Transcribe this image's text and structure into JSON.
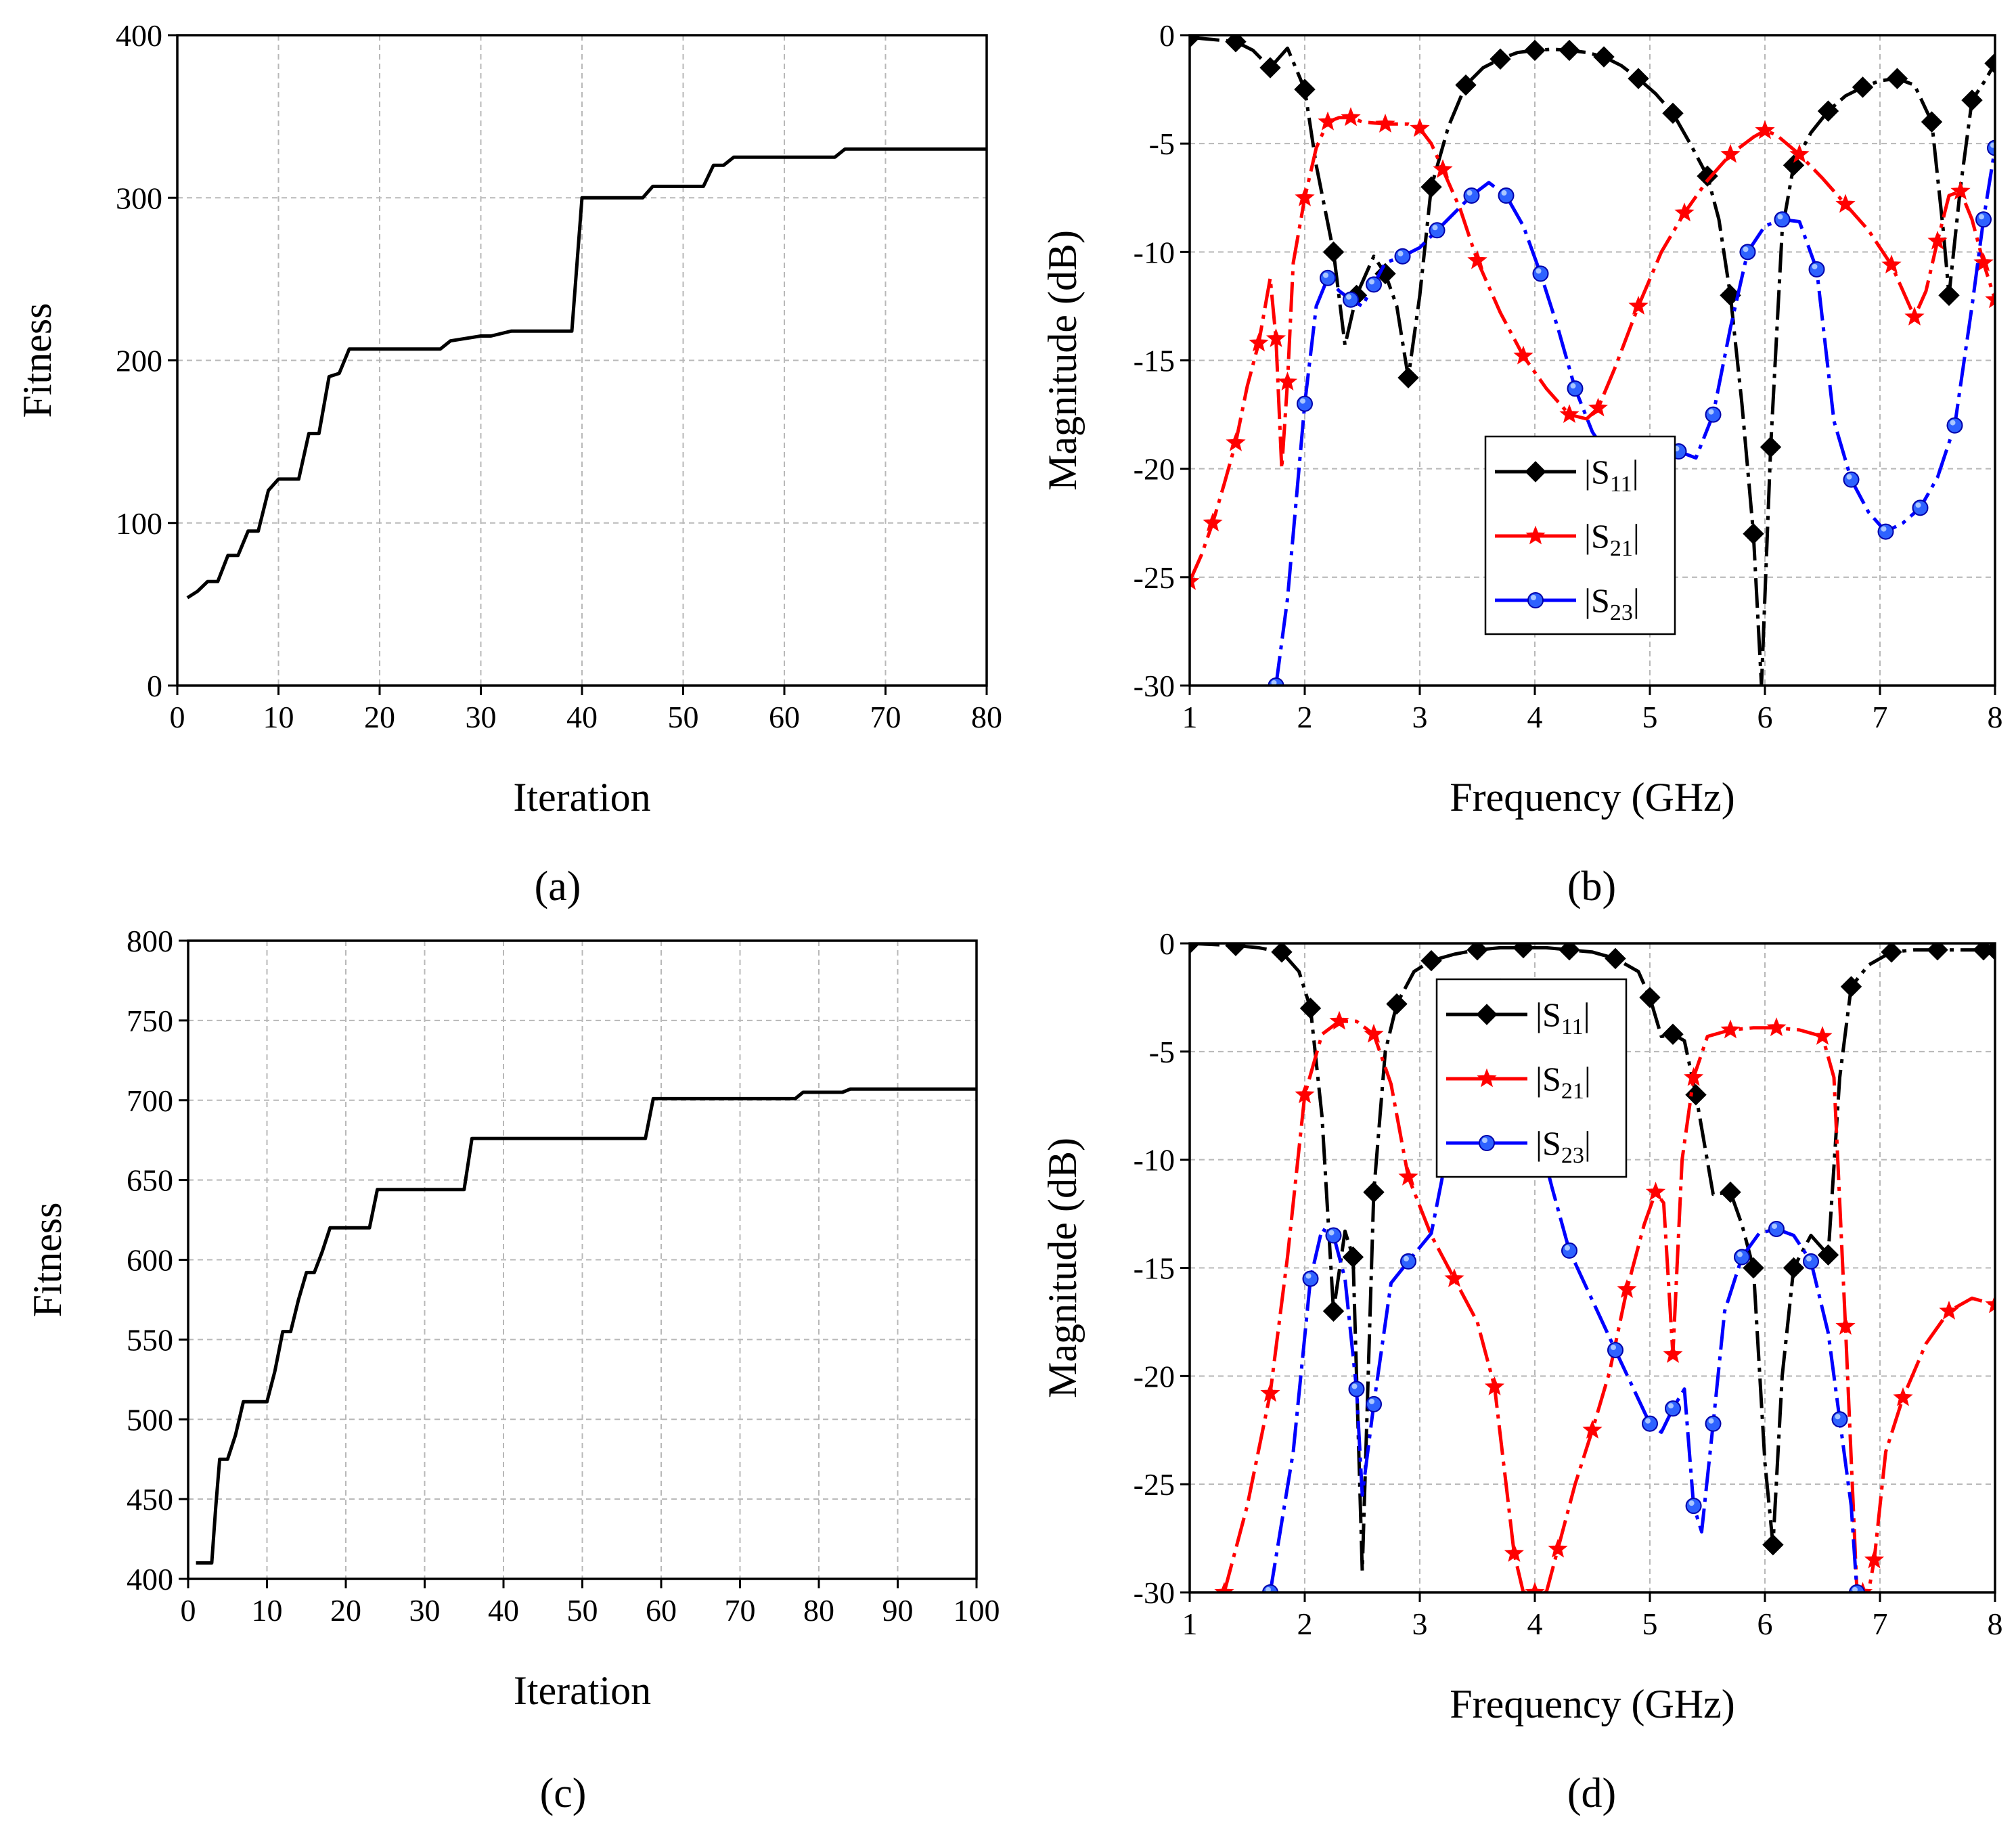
{
  "chart_data": [
    {
      "id": "a",
      "type": "line",
      "caption": "(a)",
      "xlabel": "Iteration",
      "ylabel": "Fitness",
      "xlim": [
        0,
        80
      ],
      "ylim": [
        0,
        400
      ],
      "xticks": [
        0,
        10,
        20,
        30,
        40,
        50,
        60,
        70,
        80
      ],
      "yticks": [
        0,
        100,
        200,
        300,
        400
      ],
      "grid": true,
      "series": [
        {
          "color": "#000000",
          "x": [
            1,
            2,
            3,
            4,
            5,
            6,
            7,
            8,
            9,
            10,
            11,
            12,
            13,
            14,
            15,
            16,
            17,
            20,
            25,
            26,
            27,
            30,
            31,
            33,
            35,
            39,
            40,
            45,
            46,
            47,
            50,
            52,
            53,
            54,
            55,
            60,
            65,
            66,
            70,
            75,
            80
          ],
          "y": [
            54,
            58,
            64,
            64,
            80,
            80,
            95,
            95,
            120,
            127,
            127,
            127,
            155,
            155,
            190,
            192,
            207,
            207,
            207,
            207,
            212,
            215,
            215,
            218,
            218,
            218,
            300,
            300,
            300,
            307,
            307,
            307,
            320,
            320,
            325,
            325,
            325,
            330,
            330,
            330,
            330
          ]
        }
      ]
    },
    {
      "id": "b",
      "type": "line",
      "caption": "(b)",
      "xlabel": "Frequency (GHz)",
      "ylabel": "Magnitude (dB)",
      "xlim": [
        1,
        8
      ],
      "ylim": [
        -30,
        0
      ],
      "xticks": [
        1,
        2,
        3,
        4,
        5,
        6,
        7,
        8
      ],
      "yticks": [
        0,
        -5,
        -10,
        -15,
        -20,
        -25,
        -30
      ],
      "grid": true,
      "legend_position": "center",
      "series": [
        {
          "name": "|S11|",
          "color": "#000000",
          "marker": "diamond",
          "x": [
            1,
            1.2,
            1.4,
            1.55,
            1.7,
            1.85,
            2.0,
            2.1,
            2.25,
            2.35,
            2.45,
            2.6,
            2.7,
            2.8,
            2.9,
            3.0,
            3.1,
            3.25,
            3.4,
            3.55,
            3.7,
            3.85,
            4.0,
            4.15,
            4.3,
            4.45,
            4.6,
            4.75,
            4.9,
            5.05,
            5.2,
            5.35,
            5.5,
            5.6,
            5.7,
            5.8,
            5.9,
            5.97,
            6.05,
            6.15,
            6.25,
            6.4,
            6.55,
            6.7,
            6.85,
            7.0,
            7.15,
            7.3,
            7.45,
            7.55,
            7.6,
            7.7,
            7.8,
            7.9,
            8.0
          ],
          "y": [
            -0.1,
            -0.2,
            -0.3,
            -0.7,
            -1.5,
            -0.6,
            -2.5,
            -6,
            -10,
            -14.3,
            -12,
            -10.2,
            -11,
            -12.5,
            -15.8,
            -12,
            -7,
            -4.2,
            -2.3,
            -1.5,
            -1.1,
            -0.8,
            -0.7,
            -0.65,
            -0.7,
            -0.8,
            -1.0,
            -1.4,
            -2,
            -2.7,
            -3.6,
            -5,
            -6.5,
            -8.5,
            -12,
            -17,
            -23,
            -30,
            -19,
            -9,
            -6,
            -4.5,
            -3.5,
            -2.8,
            -2.4,
            -2.1,
            -2.0,
            -2.3,
            -4,
            -9,
            -12,
            -7,
            -3,
            -2.2,
            -1.3
          ]
        },
        {
          "name": "|S21|",
          "color": "#ff0000",
          "marker": "star",
          "x": [
            1,
            1.1,
            1.2,
            1.3,
            1.4,
            1.5,
            1.6,
            1.7,
            1.75,
            1.8,
            1.85,
            1.9,
            2.0,
            2.1,
            2.2,
            2.3,
            2.4,
            2.5,
            2.7,
            2.9,
            3.0,
            3.1,
            3.2,
            3.35,
            3.5,
            3.7,
            3.9,
            4.1,
            4.3,
            4.45,
            4.55,
            4.7,
            4.9,
            5.1,
            5.3,
            5.5,
            5.7,
            5.9,
            6.0,
            6.1,
            6.3,
            6.5,
            6.7,
            6.9,
            7.1,
            7.2,
            7.3,
            7.4,
            7.5,
            7.6,
            7.7,
            7.8,
            7.9,
            8.0
          ],
          "y": [
            -25.2,
            -24,
            -22.5,
            -20.7,
            -18.8,
            -16.2,
            -14.2,
            -11.2,
            -14,
            -20,
            -16,
            -10.5,
            -7.5,
            -5.2,
            -4.0,
            -3.8,
            -3.8,
            -4.0,
            -4.1,
            -4.1,
            -4.3,
            -5,
            -6.2,
            -8,
            -10.4,
            -12.8,
            -14.8,
            -16.3,
            -17.5,
            -17.7,
            -17.2,
            -15.3,
            -12.5,
            -10,
            -8.2,
            -6.7,
            -5.5,
            -4.7,
            -4.4,
            -4.6,
            -5.5,
            -6.6,
            -7.8,
            -9,
            -10.6,
            -11.8,
            -13,
            -11.8,
            -9.5,
            -7.4,
            -7.2,
            -8.5,
            -10.5,
            -12.2
          ]
        },
        {
          "name": "|S23|",
          "color": "#0000ff",
          "marker": "circle",
          "x": [
            1.75,
            1.85,
            2.0,
            2.1,
            2.2,
            2.3,
            2.4,
            2.5,
            2.6,
            2.7,
            2.85,
            3.0,
            3.15,
            3.3,
            3.45,
            3.6,
            3.75,
            3.9,
            4.05,
            4.2,
            4.35,
            4.5,
            4.65,
            4.8,
            4.95,
            5.1,
            5.25,
            5.4,
            5.55,
            5.7,
            5.85,
            6.0,
            6.15,
            6.3,
            6.45,
            6.6,
            6.75,
            6.9,
            7.05,
            7.2,
            7.35,
            7.5,
            7.65,
            7.8,
            7.9,
            8.0
          ],
          "y": [
            -30,
            -26,
            -17,
            -12.5,
            -11.2,
            -11.8,
            -12.2,
            -12.5,
            -11.5,
            -10.5,
            -10.2,
            -9.8,
            -9,
            -8.2,
            -7.4,
            -6.8,
            -7.4,
            -8.8,
            -11,
            -13.5,
            -16.3,
            -18.3,
            -19.5,
            -20.5,
            -21.2,
            -20.4,
            -19.2,
            -19.5,
            -17.5,
            -13.5,
            -10,
            -8.8,
            -8.5,
            -8.6,
            -10.8,
            -17.8,
            -20.5,
            -22,
            -22.9,
            -22.5,
            -21.8,
            -20.4,
            -18,
            -12.5,
            -8.5,
            -5.2
          ]
        }
      ]
    },
    {
      "id": "c",
      "type": "line",
      "caption": "(c)",
      "xlabel": "Iteration",
      "ylabel": "Fitness",
      "xlim": [
        0,
        100
      ],
      "ylim": [
        400,
        800
      ],
      "xticks": [
        0,
        10,
        20,
        30,
        40,
        50,
        60,
        70,
        80,
        90,
        100
      ],
      "yticks": [
        400,
        450,
        500,
        550,
        600,
        650,
        700,
        750,
        800
      ],
      "grid": true,
      "series": [
        {
          "color": "#000000",
          "x": [
            1,
            2,
            3,
            3.5,
            4,
            5,
            6,
            7,
            8,
            9,
            10,
            11,
            12,
            13,
            14,
            15,
            16,
            17,
            18,
            20,
            23,
            24,
            30,
            35,
            36,
            40,
            50,
            58,
            59,
            60,
            70,
            77,
            78,
            80,
            83,
            84,
            90,
            100
          ],
          "y": [
            410,
            410,
            410,
            445,
            475,
            475,
            490,
            511,
            511,
            511,
            511,
            530,
            555,
            555,
            575,
            592,
            592,
            605,
            620,
            620,
            620,
            644,
            644,
            644,
            676,
            676,
            676,
            676,
            701,
            701,
            701,
            701,
            705,
            705,
            705,
            707,
            707,
            707
          ]
        }
      ]
    },
    {
      "id": "d",
      "type": "line",
      "caption": "(d)",
      "xlabel": "Frequency (GHz)",
      "ylabel": "Magnitude (dB)",
      "xlim": [
        1,
        8
      ],
      "ylim": [
        -30,
        0
      ],
      "xticks": [
        1,
        2,
        3,
        4,
        5,
        6,
        7,
        8
      ],
      "yticks": [
        0,
        -5,
        -10,
        -15,
        -20,
        -25,
        -30
      ],
      "grid": true,
      "legend_position": "top-center",
      "series": [
        {
          "name": "|S11|",
          "color": "#000000",
          "marker": "diamond",
          "x": [
            1,
            1.2,
            1.4,
            1.6,
            1.8,
            1.95,
            2.05,
            2.15,
            2.25,
            2.35,
            2.42,
            2.5,
            2.6,
            2.7,
            2.8,
            2.95,
            3.1,
            3.3,
            3.5,
            3.7,
            3.9,
            4.1,
            4.3,
            4.5,
            4.7,
            4.9,
            5.0,
            5.1,
            5.2,
            5.3,
            5.4,
            5.55,
            5.7,
            5.8,
            5.9,
            6.0,
            6.07,
            6.15,
            6.25,
            6.4,
            6.55,
            6.65,
            6.75,
            6.9,
            7.1,
            7.3,
            7.5,
            7.7,
            7.9,
            8.0
          ],
          "y": [
            0,
            -0.05,
            -0.1,
            -0.2,
            -0.4,
            -1.3,
            -3,
            -8,
            -17,
            -13.3,
            -14.5,
            -29,
            -11.5,
            -5,
            -2.8,
            -1.3,
            -0.8,
            -0.5,
            -0.3,
            -0.2,
            -0.2,
            -0.2,
            -0.3,
            -0.4,
            -0.7,
            -1.3,
            -2.5,
            -4.3,
            -4.2,
            -4.5,
            -7,
            -11.6,
            -11.5,
            -13,
            -15,
            -24,
            -27.8,
            -20,
            -15,
            -13.5,
            -14.4,
            -6.2,
            -2,
            -1,
            -0.4,
            -0.3,
            -0.3,
            -0.3,
            -0.3,
            -0.3
          ]
        },
        {
          "name": "|S21|",
          "color": "#ff0000",
          "marker": "star",
          "x": [
            1.3,
            1.5,
            1.7,
            1.85,
            2.0,
            2.15,
            2.3,
            2.45,
            2.6,
            2.75,
            2.9,
            3.1,
            3.3,
            3.5,
            3.65,
            3.75,
            3.82,
            3.9,
            4.0,
            4.1,
            4.2,
            4.35,
            4.5,
            4.65,
            4.8,
            4.95,
            5.05,
            5.12,
            5.2,
            5.28,
            5.38,
            5.5,
            5.7,
            5.9,
            6.1,
            6.3,
            6.5,
            6.6,
            6.7,
            6.8,
            6.85,
            6.9,
            6.95,
            7.05,
            7.2,
            7.4,
            7.6,
            7.8,
            8.0
          ],
          "y": [
            -30,
            -26,
            -20.8,
            -14.5,
            -7,
            -4.2,
            -3.6,
            -3.6,
            -4.2,
            -6.5,
            -10.8,
            -13.5,
            -15.5,
            -17.5,
            -20.5,
            -25,
            -28.2,
            -30,
            -30,
            -30,
            -28,
            -25,
            -22.5,
            -19.8,
            -16,
            -13,
            -11.5,
            -12,
            -19,
            -10,
            -6.2,
            -4.3,
            -4,
            -3.9,
            -3.9,
            -4,
            -4.3,
            -6.2,
            -17.7,
            -30,
            -30,
            -30,
            -28.5,
            -23.5,
            -21,
            -18.5,
            -17,
            -16.4,
            -16.7
          ]
        },
        {
          "name": "|S23|",
          "color": "#0000ff",
          "marker": "circle",
          "x": [
            1.7,
            1.9,
            2.05,
            2.15,
            2.25,
            2.35,
            2.45,
            2.5,
            2.6,
            2.75,
            2.9,
            3.1,
            3.3,
            3.5,
            3.7,
            3.85,
            4.0,
            4.15,
            4.3,
            4.5,
            4.7,
            4.85,
            5.0,
            5.1,
            5.2,
            5.3,
            5.38,
            5.45,
            5.55,
            5.65,
            5.8,
            5.95,
            6.1,
            6.25,
            6.4,
            6.55,
            6.65,
            6.75,
            6.8
          ],
          "y": [
            -30,
            -23.5,
            -15.5,
            -13.2,
            -13.5,
            -15.5,
            -20.6,
            -25.5,
            -21.3,
            -15.7,
            -14.7,
            -13.4,
            -8,
            -3,
            -2,
            -4,
            -8.2,
            -11.3,
            -14.2,
            -16.5,
            -18.8,
            -20.5,
            -22.2,
            -22.6,
            -21.5,
            -20.6,
            -26,
            -27.2,
            -22.2,
            -17,
            -14.5,
            -13.4,
            -13.2,
            -13.5,
            -14.7,
            -18,
            -22,
            -26,
            -30
          ]
        }
      ]
    }
  ]
}
